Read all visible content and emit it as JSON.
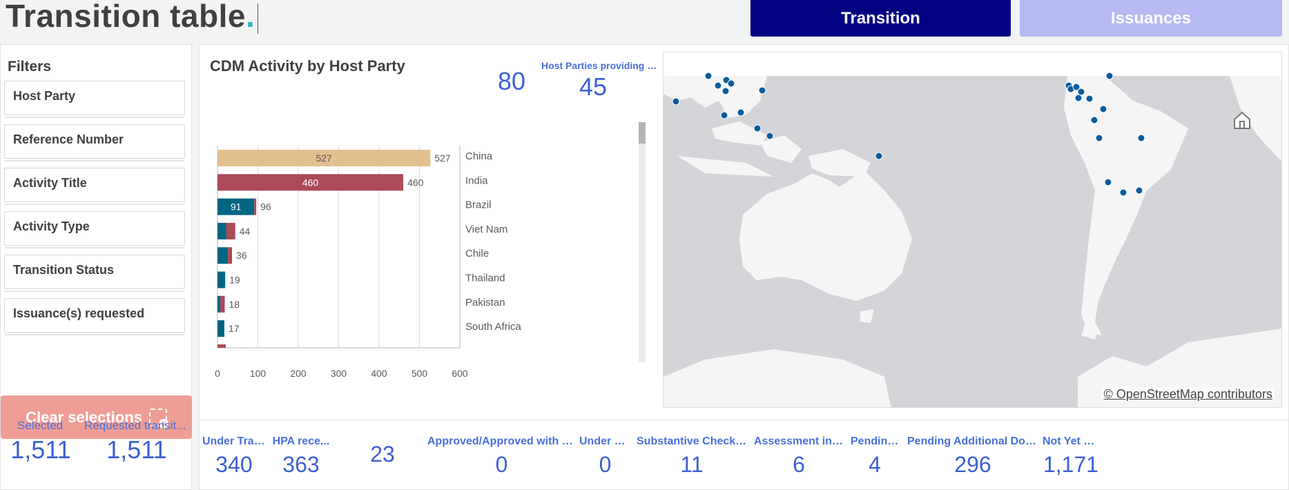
{
  "header": {
    "title": "Transition table",
    "title_dot": ".",
    "nav": [
      {
        "label": "Transition",
        "active": true,
        "color": "#020282"
      },
      {
        "label": "Issuances",
        "active": false,
        "color": "#b6b9f2"
      }
    ]
  },
  "filters": {
    "title": "Filters",
    "items": [
      "Host Party",
      "Reference Number",
      "Activity Title",
      "Activity Type",
      "Transition Status",
      "Issuance(s) requested"
    ],
    "clear_label": "Clear selections"
  },
  "summary": {
    "selected_label": "Selected",
    "selected_value": "1,511",
    "requested_label": "Requested transit...",
    "requested_value": "1,511"
  },
  "main": {
    "chart_title": "CDM Activity by Host Party",
    "kpi_left_value": "80",
    "kpi_right_label": "Host Parties providing a...",
    "kpi_right_value": "45",
    "map_credit": "© OpenStreetMap contributors"
  },
  "chart_data": {
    "type": "bar",
    "orientation": "horizontal",
    "stacked": true,
    "categories": [
      "China",
      "India",
      "Brazil",
      "Viet Nam",
      "Chile",
      "Thailand",
      "Pakistan",
      "South Africa"
    ],
    "totals": [
      527,
      460,
      96,
      44,
      36,
      19,
      18,
      17
    ],
    "segment_labels": [
      "527",
      "460",
      "91",
      "",
      "",
      "",
      "",
      ""
    ],
    "series": [
      {
        "color": "#e2bf8e",
        "values": [
          527,
          0,
          0,
          0,
          0,
          0,
          0,
          0
        ]
      },
      {
        "color": "#ab4a58",
        "values": [
          0,
          460,
          0,
          0,
          0,
          0,
          0,
          0
        ]
      },
      {
        "color": "#006580",
        "values": [
          0,
          0,
          91,
          22,
          26,
          19,
          7,
          17
        ]
      },
      {
        "color": "#ab4a58",
        "values": [
          0,
          0,
          5,
          22,
          10,
          0,
          11,
          0
        ]
      }
    ],
    "xlim": [
      0,
      600
    ],
    "x_ticks": [
      "0",
      "100",
      "200",
      "300",
      "400",
      "500",
      "600"
    ],
    "grid": true
  },
  "statuses": [
    {
      "label": "Under Tran...",
      "value": "340"
    },
    {
      "label": "HPA rece...",
      "value": "363"
    },
    {
      "label": "",
      "value": "23"
    },
    {
      "label": "Approved/Approved with Modi...",
      "value": "0"
    },
    {
      "label": "Under R...",
      "value": "0"
    },
    {
      "label": "Substantive Check Co...",
      "value": "11"
    },
    {
      "label": "Assessment in Pr...",
      "value": "6"
    },
    {
      "label": "Pending ...",
      "value": "4"
    },
    {
      "label": "Pending Additional Docum...",
      "value": "296"
    },
    {
      "label": "Not Yet St...",
      "value": "1,171"
    }
  ],
  "colors": {
    "accent": "#3d5fd0",
    "map_land": "#f5f5f5",
    "map_water": "#d4d5d9",
    "map_point": "#0a5c9c"
  }
}
